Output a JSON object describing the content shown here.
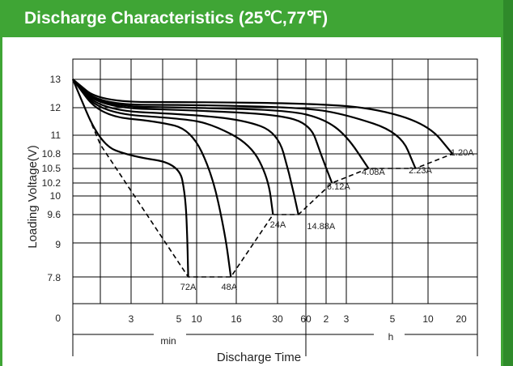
{
  "title": "Discharge Characteristics (25℃,77℉)",
  "colors": {
    "header": "#3fa535",
    "curve": "#000000",
    "grid": "#000000"
  },
  "chart_data": {
    "type": "line",
    "title": "Discharge Characteristics (25℃,77℉)",
    "xlabel": "Discharge Time",
    "ylabel": "Loading  Voltage(V)",
    "x_unit_labels": [
      "min",
      "h"
    ],
    "x_ticks": [
      "3",
      "5",
      "10",
      "16",
      "30",
      "60",
      "2",
      "3",
      "5",
      "10",
      "20"
    ],
    "y_ticks": [
      "13",
      "12",
      "11",
      "10.8",
      "10.5",
      "10.2",
      "10",
      "9.6",
      "9",
      "7.8",
      "0"
    ],
    "grid": true,
    "series": [
      {
        "name": "72A",
        "x": [
          0,
          1,
          3,
          5,
          6.5,
          7,
          7.2
        ],
        "y": [
          13,
          10.9,
          10.75,
          10.6,
          10.0,
          9.0,
          7.8
        ],
        "end_label": "72A"
      },
      {
        "name": "48A",
        "x": [
          0,
          1,
          4,
          8,
          12,
          14,
          15
        ],
        "y": [
          13,
          11.7,
          11.5,
          11.2,
          10.4,
          9.2,
          7.8
        ],
        "end_label": "48A"
      },
      {
        "name": "24A",
        "x": [
          0,
          1,
          6,
          12,
          20,
          26,
          28
        ],
        "y": [
          13,
          11.8,
          11.6,
          11.4,
          10.9,
          10.3,
          9.6
        ],
        "end_label": "24A"
      },
      {
        "name": "14.88A",
        "x": [
          0,
          1,
          8,
          18,
          30,
          40,
          50
        ],
        "y": [
          13,
          11.9,
          11.75,
          11.55,
          11.1,
          10.4,
          9.6
        ],
        "end_label": "14.88A"
      },
      {
        "name": "6.12A",
        "x": [
          0,
          1,
          10,
          30,
          70,
          100,
          135
        ],
        "y": [
          13,
          12.0,
          11.9,
          11.75,
          11.4,
          10.8,
          10.2
        ],
        "end_label": "6.12A"
      },
      {
        "name": "4.08A",
        "x": [
          0,
          1,
          10,
          40,
          110,
          180,
          230
        ],
        "y": [
          13,
          12.05,
          12.0,
          11.9,
          11.6,
          11.0,
          10.5
        ],
        "end_label": "4.08A"
      },
      {
        "name": "2.23A",
        "x": [
          0,
          1,
          10,
          60,
          180,
          350,
          470
        ],
        "y": [
          13,
          12.1,
          12.1,
          12.0,
          11.75,
          11.1,
          10.5
        ],
        "end_label": "2.23A"
      },
      {
        "name": "1.20A",
        "x": [
          0,
          1,
          10,
          60,
          240,
          600,
          1000
        ],
        "y": [
          13,
          12.2,
          12.2,
          12.15,
          12.0,
          11.4,
          10.8
        ],
        "end_label": "1.20A"
      }
    ],
    "cutoff_line": {
      "style": "dashed",
      "x": [
        0,
        1,
        7.2,
        10,
        15,
        28,
        50,
        135,
        230,
        470,
        1000
      ],
      "y": [
        13,
        10.9,
        7.8,
        7.8,
        7.8,
        9.6,
        9.6,
        10.2,
        10.5,
        10.5,
        10.8
      ]
    }
  }
}
